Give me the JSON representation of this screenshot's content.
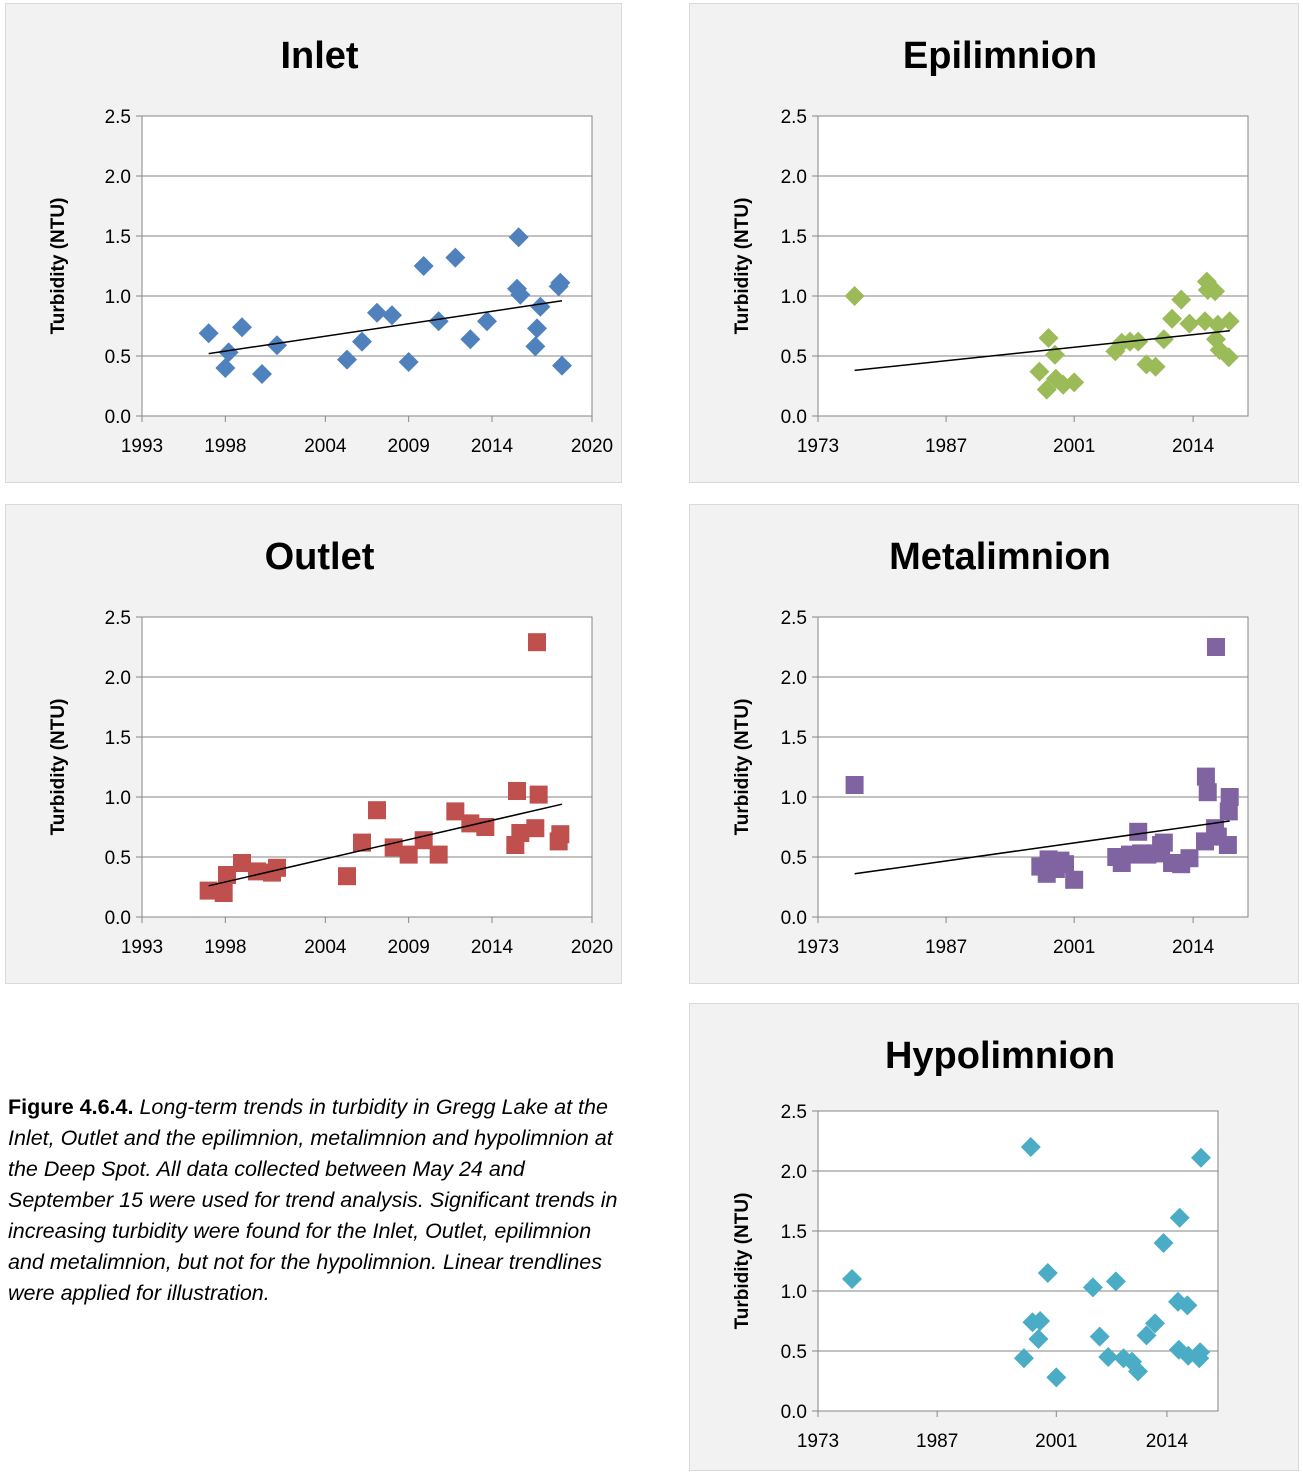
{
  "caption": {
    "label": "Figure 4.6.4.",
    "text": "Long-term trends in turbidity in Gregg Lake at the Inlet, Outlet and the epilimnion, metalimnion and hypolimnion at the Deep Spot. All data collected between May 24 and September 15 were used for trend analysis. Significant trends in increasing turbidity were found for the Inlet, Outlet, epilimnion and metalimnion, but not for the hypolimnion. Linear trendlines were applied for illustration."
  },
  "colors": {
    "inlet": "#4f81bd",
    "outlet": "#c0504d",
    "epilimnion": "#9bbb59",
    "metalimnion": "#8064a2",
    "hypolimnion": "#4bacc6"
  },
  "chart_data": [
    {
      "id": "inlet",
      "type": "scatter",
      "title": "Inlet",
      "ylabel": "Turbidity (NTU)",
      "xlabel": "",
      "marker": "diamond",
      "color": "#4f81bd",
      "xlim": [
        1993,
        2020
      ],
      "ylim": [
        0,
        2.5
      ],
      "xticks": [
        1993,
        1998,
        2004,
        2009,
        2014,
        2020
      ],
      "yticks": [
        "0.0",
        "0.5",
        "1.0",
        "1.5",
        "2.0",
        "2.5"
      ],
      "grid": true,
      "points": [
        {
          "x": 1997.0,
          "y": 0.69
        },
        {
          "x": 1998.0,
          "y": 0.4
        },
        {
          "x": 1998.2,
          "y": 0.53
        },
        {
          "x": 1999.0,
          "y": 0.74
        },
        {
          "x": 2000.2,
          "y": 0.35
        },
        {
          "x": 2001.1,
          "y": 0.59
        },
        {
          "x": 2005.3,
          "y": 0.47
        },
        {
          "x": 2006.2,
          "y": 0.62
        },
        {
          "x": 2007.1,
          "y": 0.86
        },
        {
          "x": 2008.0,
          "y": 0.84
        },
        {
          "x": 2009.0,
          "y": 0.45
        },
        {
          "x": 2009.9,
          "y": 1.25
        },
        {
          "x": 2010.8,
          "y": 0.79
        },
        {
          "x": 2011.8,
          "y": 1.32
        },
        {
          "x": 2012.7,
          "y": 0.64
        },
        {
          "x": 2013.7,
          "y": 0.79
        },
        {
          "x": 2015.5,
          "y": 1.06
        },
        {
          "x": 2015.6,
          "y": 1.49
        },
        {
          "x": 2015.7,
          "y": 1.01
        },
        {
          "x": 2016.6,
          "y": 0.58
        },
        {
          "x": 2016.7,
          "y": 0.73
        },
        {
          "x": 2016.9,
          "y": 0.91
        },
        {
          "x": 2018.0,
          "y": 1.08
        },
        {
          "x": 2018.1,
          "y": 1.11
        },
        {
          "x": 2018.2,
          "y": 0.42
        }
      ],
      "trendline": {
        "x": [
          1997.0,
          2018.2
        ],
        "y": [
          0.52,
          0.96
        ]
      }
    },
    {
      "id": "epilimnion",
      "type": "scatter",
      "title": "Epilimnion",
      "ylabel": "Turbidity (NTU)",
      "xlabel": "",
      "marker": "diamond",
      "color": "#9bbb59",
      "xlim": [
        1973,
        2020
      ],
      "ylim": [
        0,
        2.5
      ],
      "xticks": [
        1973,
        1987,
        2001,
        2014
      ],
      "yticks": [
        "0.0",
        "0.5",
        "1.0",
        "1.5",
        "2.0",
        "2.5"
      ],
      "grid": true,
      "points": [
        {
          "x": 1977.0,
          "y": 1.0
        },
        {
          "x": 1997.2,
          "y": 0.37
        },
        {
          "x": 1998.0,
          "y": 0.22
        },
        {
          "x": 1998.2,
          "y": 0.65
        },
        {
          "x": 1998.9,
          "y": 0.51
        },
        {
          "x": 1999.0,
          "y": 0.31
        },
        {
          "x": 1999.8,
          "y": 0.26
        },
        {
          "x": 2001.0,
          "y": 0.28
        },
        {
          "x": 2005.5,
          "y": 0.54
        },
        {
          "x": 2006.2,
          "y": 0.61
        },
        {
          "x": 2007.1,
          "y": 0.62
        },
        {
          "x": 2008.0,
          "y": 0.62
        },
        {
          "x": 2008.9,
          "y": 0.43
        },
        {
          "x": 2009.9,
          "y": 0.41
        },
        {
          "x": 2010.8,
          "y": 0.64
        },
        {
          "x": 2011.7,
          "y": 0.81
        },
        {
          "x": 2012.7,
          "y": 0.97
        },
        {
          "x": 2013.6,
          "y": 0.77
        },
        {
          "x": 2015.3,
          "y": 0.79
        },
        {
          "x": 2015.5,
          "y": 1.12
        },
        {
          "x": 2015.6,
          "y": 1.05
        },
        {
          "x": 2016.4,
          "y": 1.04
        },
        {
          "x": 2016.5,
          "y": 0.64
        },
        {
          "x": 2016.7,
          "y": 0.76
        },
        {
          "x": 2016.9,
          "y": 0.55
        },
        {
          "x": 2017.9,
          "y": 0.49
        },
        {
          "x": 2018.0,
          "y": 0.79
        }
      ],
      "trendline": {
        "x": [
          1977.0,
          2018.0
        ],
        "y": [
          0.38,
          0.71
        ]
      }
    },
    {
      "id": "outlet",
      "type": "scatter",
      "title": "Outlet",
      "ylabel": "Turbidity (NTU)",
      "xlabel": "",
      "marker": "square",
      "color": "#c0504d",
      "xlim": [
        1993,
        2020
      ],
      "ylim": [
        0,
        2.5
      ],
      "xticks": [
        1993,
        1998,
        2004,
        2009,
        2014,
        2020
      ],
      "yticks": [
        "0.0",
        "0.5",
        "1.0",
        "1.5",
        "2.0",
        "2.5"
      ],
      "grid": true,
      "points": [
        {
          "x": 1997.0,
          "y": 0.22
        },
        {
          "x": 1997.9,
          "y": 0.2
        },
        {
          "x": 1998.1,
          "y": 0.35
        },
        {
          "x": 1999.0,
          "y": 0.45
        },
        {
          "x": 1999.9,
          "y": 0.38
        },
        {
          "x": 2000.8,
          "y": 0.37
        },
        {
          "x": 2001.1,
          "y": 0.41
        },
        {
          "x": 2005.3,
          "y": 0.34
        },
        {
          "x": 2006.2,
          "y": 0.62
        },
        {
          "x": 2007.1,
          "y": 0.89
        },
        {
          "x": 2008.1,
          "y": 0.58
        },
        {
          "x": 2009.0,
          "y": 0.52
        },
        {
          "x": 2009.9,
          "y": 0.64
        },
        {
          "x": 2010.8,
          "y": 0.52
        },
        {
          "x": 2011.8,
          "y": 0.88
        },
        {
          "x": 2012.7,
          "y": 0.78
        },
        {
          "x": 2013.6,
          "y": 0.75
        },
        {
          "x": 2015.4,
          "y": 0.6
        },
        {
          "x": 2015.5,
          "y": 1.05
        },
        {
          "x": 2015.7,
          "y": 0.7
        },
        {
          "x": 2016.6,
          "y": 0.74
        },
        {
          "x": 2016.7,
          "y": 2.29
        },
        {
          "x": 2016.8,
          "y": 1.02
        },
        {
          "x": 2018.0,
          "y": 0.63
        },
        {
          "x": 2018.1,
          "y": 0.69
        }
      ],
      "trendline": {
        "x": [
          1997.0,
          2018.2
        ],
        "y": [
          0.26,
          0.94
        ]
      }
    },
    {
      "id": "metalimnion",
      "type": "scatter",
      "title": "Metalimnion",
      "ylabel": "Turbidity (NTU)",
      "xlabel": "",
      "marker": "square",
      "color": "#8064a2",
      "xlim": [
        1973,
        2020
      ],
      "ylim": [
        0,
        2.5
      ],
      "xticks": [
        1973,
        1987,
        2001,
        2014
      ],
      "yticks": [
        "0.0",
        "0.5",
        "1.0",
        "1.5",
        "2.0",
        "2.5"
      ],
      "grid": true,
      "points": [
        {
          "x": 1977.0,
          "y": 1.1
        },
        {
          "x": 1997.3,
          "y": 0.42
        },
        {
          "x": 1998.0,
          "y": 0.36
        },
        {
          "x": 1998.2,
          "y": 0.48
        },
        {
          "x": 1999.0,
          "y": 0.4
        },
        {
          "x": 1999.5,
          "y": 0.47
        },
        {
          "x": 2000.0,
          "y": 0.44
        },
        {
          "x": 2001.0,
          "y": 0.31
        },
        {
          "x": 2005.6,
          "y": 0.5
        },
        {
          "x": 2006.2,
          "y": 0.45
        },
        {
          "x": 2007.1,
          "y": 0.52
        },
        {
          "x": 2008.0,
          "y": 0.71
        },
        {
          "x": 2008.3,
          "y": 0.53
        },
        {
          "x": 2009.0,
          "y": 0.52
        },
        {
          "x": 2009.9,
          "y": 0.53
        },
        {
          "x": 2010.5,
          "y": 0.6
        },
        {
          "x": 2010.8,
          "y": 0.62
        },
        {
          "x": 2011.7,
          "y": 0.45
        },
        {
          "x": 2012.7,
          "y": 0.44
        },
        {
          "x": 2013.6,
          "y": 0.49
        },
        {
          "x": 2015.3,
          "y": 0.63
        },
        {
          "x": 2015.4,
          "y": 1.17
        },
        {
          "x": 2015.6,
          "y": 1.04
        },
        {
          "x": 2016.4,
          "y": 0.74
        },
        {
          "x": 2016.5,
          "y": 2.25
        },
        {
          "x": 2016.7,
          "y": 0.67
        },
        {
          "x": 2017.8,
          "y": 0.6
        },
        {
          "x": 2017.9,
          "y": 0.88
        },
        {
          "x": 2018.0,
          "y": 1.0
        }
      ],
      "trendline": {
        "x": [
          1977.0,
          2018.0
        ],
        "y": [
          0.36,
          0.8
        ]
      }
    },
    {
      "id": "hypolimnion",
      "type": "scatter",
      "title": "Hypolimnion",
      "ylabel": "Turbidity (NTU)",
      "xlabel": "",
      "marker": "diamond",
      "color": "#4bacc6",
      "xlim": [
        1973,
        2020
      ],
      "ylim": [
        0,
        2.5
      ],
      "xticks": [
        1973,
        1987,
        2001,
        2014
      ],
      "yticks": [
        "0.0",
        "0.5",
        "1.0",
        "1.5",
        "2.0",
        "2.5"
      ],
      "grid": true,
      "points": [
        {
          "x": 1977.0,
          "y": 1.1
        },
        {
          "x": 1997.2,
          "y": 0.44
        },
        {
          "x": 1998.0,
          "y": 2.2
        },
        {
          "x": 1998.2,
          "y": 0.74
        },
        {
          "x": 1998.9,
          "y": 0.6
        },
        {
          "x": 1999.1,
          "y": 0.75
        },
        {
          "x": 2000.0,
          "y": 1.15
        },
        {
          "x": 2001.0,
          "y": 0.28
        },
        {
          "x": 2005.3,
          "y": 1.03
        },
        {
          "x": 2006.1,
          "y": 0.62
        },
        {
          "x": 2007.1,
          "y": 0.45
        },
        {
          "x": 2008.0,
          "y": 1.08
        },
        {
          "x": 2008.9,
          "y": 0.44
        },
        {
          "x": 2009.9,
          "y": 0.41
        },
        {
          "x": 2010.6,
          "y": 0.33
        },
        {
          "x": 2011.6,
          "y": 0.63
        },
        {
          "x": 2012.6,
          "y": 0.73
        },
        {
          "x": 2013.6,
          "y": 1.4
        },
        {
          "x": 2015.3,
          "y": 0.91
        },
        {
          "x": 2015.4,
          "y": 0.51
        },
        {
          "x": 2015.5,
          "y": 1.61
        },
        {
          "x": 2016.4,
          "y": 0.88
        },
        {
          "x": 2016.5,
          "y": 0.46
        },
        {
          "x": 2017.8,
          "y": 0.44
        },
        {
          "x": 2017.9,
          "y": 0.49
        },
        {
          "x": 2018.0,
          "y": 2.11
        }
      ]
    }
  ]
}
